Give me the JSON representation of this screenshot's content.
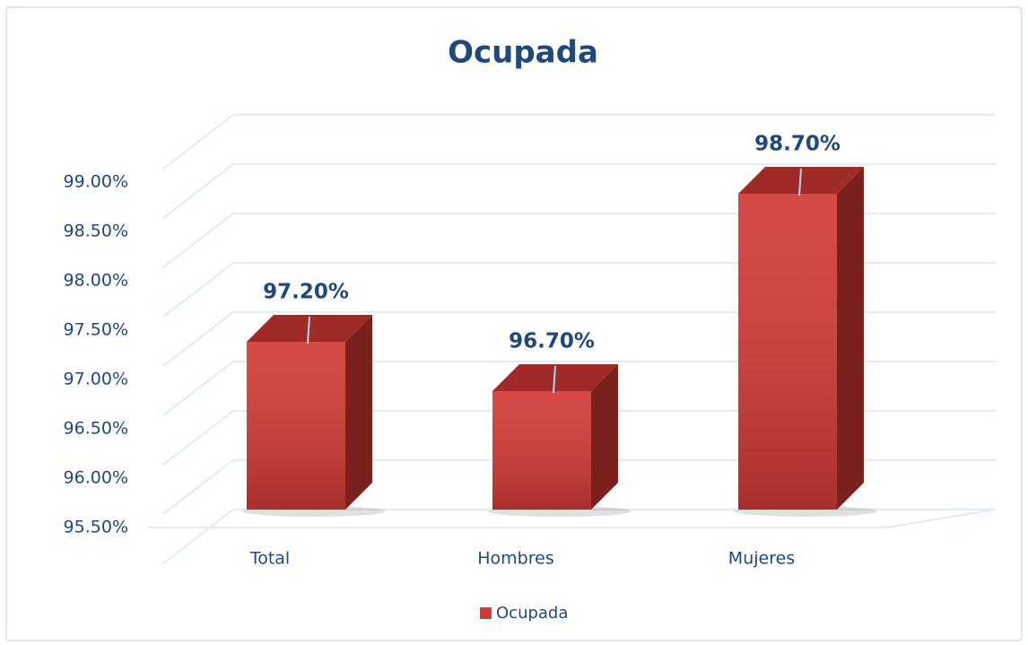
{
  "chart_data": {
    "type": "bar3d",
    "title": "Ocupada",
    "categories": [
      "Total",
      "Hombres",
      "Mujeres"
    ],
    "series": [
      {
        "name": "Ocupada",
        "color": "#d33a35",
        "values": [
          97.2,
          96.7,
          98.7
        ],
        "value_labels": [
          "97.20%",
          "96.70%",
          "98.70%"
        ]
      }
    ],
    "ylim": [
      95.5,
      99.5
    ],
    "yticks": [
      {
        "value": 95.5,
        "label": "95.50%"
      },
      {
        "value": 96,
        "label": "96.00%"
      },
      {
        "value": 96.5,
        "label": "96.50%"
      },
      {
        "value": 97,
        "label": "97.00%"
      },
      {
        "value": 97.5,
        "label": "97.50%"
      },
      {
        "value": 98,
        "label": "98.00%"
      },
      {
        "value": 98.5,
        "label": "98.50%"
      },
      {
        "value": 99,
        "label": "99.00%"
      }
    ],
    "grid": true,
    "legend": "bottom"
  }
}
